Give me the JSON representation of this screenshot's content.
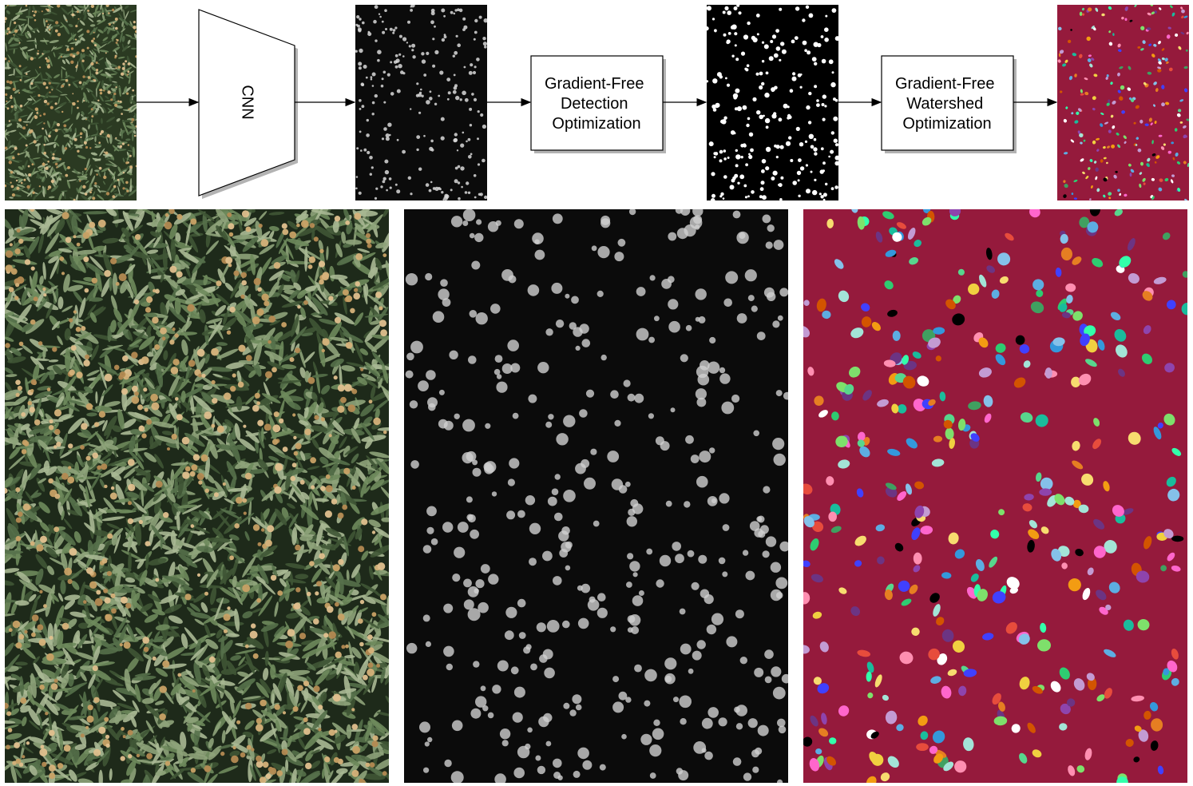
{
  "diagram": {
    "cnn_label": "CNN",
    "detection_box_lines": [
      "Gradient-Free",
      "Detection",
      "Optimization"
    ],
    "watershed_box_lines": [
      "Gradient-Free",
      "Watershed",
      "Optimization"
    ]
  },
  "colors": {
    "arrow": "#000000",
    "box_fill": "#ffffff",
    "box_shadow": "#b3b3b3",
    "segmentation_background": "#951a3c",
    "crop_background": "#1e2a1a",
    "crop_foliage": "#6e8a5c",
    "crop_flower": "#c8a165",
    "heatmap_background": "#0b0b0b",
    "heatmap_blob": "#d9d9d9",
    "mask_background": "#000000",
    "mask_blob": "#ffffff",
    "segment_palette": [
      "#7ee06b",
      "#40a060",
      "#f0d040",
      "#e74c3c",
      "#5dade2",
      "#8e44ad",
      "#f39c12",
      "#1abc9c",
      "#ff8fb1",
      "#2ecc71",
      "#3498db",
      "#e67e22",
      "#a3e4d7",
      "#c39bd3",
      "#ffffff",
      "#000000",
      "#6c3483",
      "#58d68d",
      "#f7dc6f",
      "#85c1e9",
      "#d35400",
      "#ff66cc",
      "#33ffaa",
      "#4040ff"
    ]
  },
  "icons": [
    "crop-field-image",
    "cnn-trapezoid",
    "heatmap-image",
    "binary-mask-image",
    "instance-segmentation-image"
  ]
}
